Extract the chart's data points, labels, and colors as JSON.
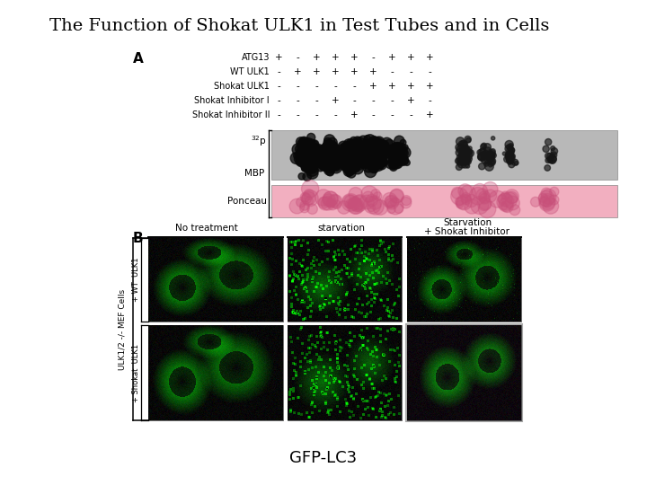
{
  "title": "The Function of Shokat ULK1 in Test Tubes and in Cells",
  "title_fontsize": 14,
  "background_color": "#ffffff",
  "panel_A_label": "A",
  "panel_B_label": "B",
  "rows": {
    "ATG13": "+ - + + + - + + +",
    "WT ULK1": "- + + + + + - - -",
    "Shokat ULK1": "- - - - - + + + +",
    "Shokat Inhibitor I": "- - - + - - - + -",
    "Shokat Inhibitor II": "- - - - + - - - +"
  },
  "mbp_label": "MBP",
  "p32_label": "32p",
  "ponceau_label": "Ponceau",
  "col_labels_B": [
    "No treatment",
    "starvation",
    "Starvation\n+ Shokat Inhibitor"
  ],
  "side_label_outer": "ULK1/2 -/- MEF Cells",
  "side_label_row1": "+ WT  ULK1",
  "side_label_row2": "+ Shokat  ULK1",
  "xlabel_B": "GFP-LC3"
}
